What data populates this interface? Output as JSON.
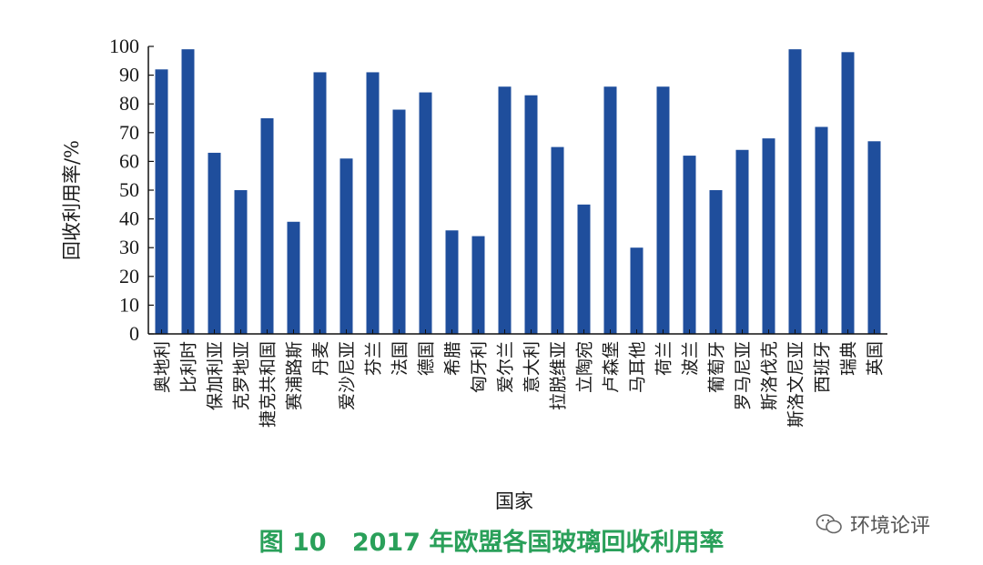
{
  "chart_data": {
    "type": "bar",
    "ylabel": "回收利用率/%",
    "xlabel": "国家",
    "ylim": [
      0,
      100
    ],
    "yticks": [
      0,
      10,
      20,
      30,
      40,
      50,
      60,
      70,
      80,
      90,
      100
    ],
    "bar_color": "#1f4e9c",
    "grid": false,
    "categories": [
      "奥地利",
      "比利时",
      "保加利亚",
      "克罗地亚",
      "捷克共和国",
      "赛浦路斯",
      "丹麦",
      "爱沙尼亚",
      "芬兰",
      "法国",
      "德国",
      "希腊",
      "匈牙利",
      "爱尔兰",
      "意大利",
      "拉脱维亚",
      "立陶宛",
      "卢森堡",
      "马耳他",
      "荷兰",
      "波兰",
      "葡萄牙",
      "罗马尼亚",
      "斯洛伐克",
      "斯洛文尼亚",
      "西班牙",
      "瑞典",
      "英国"
    ],
    "values": [
      92,
      99,
      63,
      50,
      75,
      39,
      91,
      61,
      91,
      78,
      84,
      36,
      34,
      86,
      83,
      65,
      45,
      86,
      30,
      86,
      62,
      50,
      64,
      68,
      99,
      72,
      98,
      67
    ]
  },
  "caption": {
    "figure_no": "图 10",
    "title": "2017 年欧盟各国玻璃回收利用率"
  },
  "watermark": {
    "text": "环境论评",
    "icon": "wechat-icon"
  }
}
